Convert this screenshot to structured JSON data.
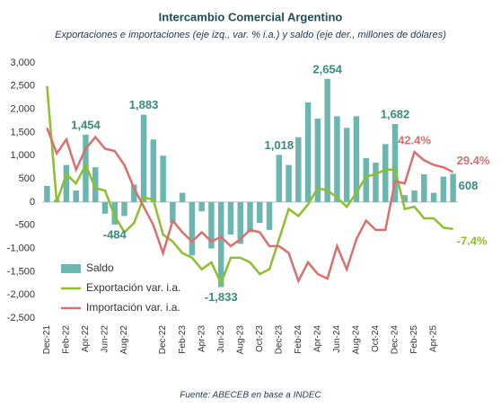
{
  "chart_data": {
    "type": "bar-line",
    "title": "Intercambio Comercial Argentino",
    "subtitle": "Exportaciones e importaciones (eje izq., var. % i.a.) y saldo (eje der., millones de dólares)",
    "source": "Fuente: ABECEB en base a INDEC",
    "categories": [
      "Dec-21",
      null,
      "Feb-22",
      null,
      "Apr-22",
      null,
      "Jun-22",
      null,
      "Aug-22",
      null,
      null,
      null,
      "Dec-22",
      null,
      "Feb-23",
      null,
      "Apr-23",
      null,
      "Jun-23",
      null,
      "Aug-23",
      null,
      "Oct-23",
      null,
      "Dec-23",
      null,
      "Feb-24",
      null,
      "Apr-24",
      null,
      "Jun-24",
      null,
      "Aug-24",
      null,
      "Oct-24",
      null,
      "Dec-24",
      null,
      "Feb-25",
      null,
      "Apr-25",
      null,
      null
    ],
    "ylim": [
      -2500,
      3000
    ],
    "yticks": [
      {
        "value": -2500,
        "label": "-2,500"
      },
      {
        "value": -2000,
        "label": "-2,000"
      },
      {
        "value": -1500,
        "label": "-1,500"
      },
      {
        "value": -1000,
        "label": "-1,000"
      },
      -500,
      0,
      500,
      {
        "value": 1000,
        "label": "1,000"
      },
      {
        "value": 1500,
        "label": "1,500"
      },
      {
        "value": 2000,
        "label": "2,000"
      },
      {
        "value": 2500,
        "label": "2,500"
      },
      {
        "value": 3000,
        "label": "3,000"
      }
    ],
    "y2lim": [
      -65,
      100
    ],
    "legend": "lower left",
    "series": [
      {
        "name": "Saldo",
        "kind": "bar",
        "color": "#6bb7b0",
        "label_color": "#3a8a80",
        "values": [
          350,
          50,
          800,
          250,
          1454,
          750,
          -250,
          -484,
          -300,
          380,
          1883,
          1350,
          1000,
          -450,
          200,
          -1150,
          -200,
          -1000,
          -1833,
          -700,
          -900,
          -650,
          -450,
          -600,
          1018,
          800,
          1400,
          2150,
          1800,
          2654,
          1850,
          1600,
          1850,
          950,
          850,
          1250,
          1682,
          150,
          250,
          600,
          200,
          550,
          608
        ],
        "value_labels": [
          null,
          null,
          null,
          null,
          "1,454",
          null,
          null,
          "-484",
          null,
          null,
          "1,883",
          null,
          null,
          null,
          null,
          null,
          null,
          null,
          "-1,833",
          null,
          null,
          null,
          null,
          null,
          "1,018",
          null,
          null,
          null,
          null,
          "2,654",
          null,
          null,
          null,
          null,
          null,
          null,
          "1,682",
          null,
          null,
          null,
          null,
          null,
          "608"
        ]
      },
      {
        "name": "Exportación var. i.a.",
        "kind": "line",
        "axis": "y2",
        "color": "#8dbf2f",
        "values": [
          85,
          10,
          28,
          22,
          34,
          19,
          17.5,
          1,
          -9.5,
          -3.5,
          13,
          11.5,
          -11,
          -15.5,
          -23,
          -26,
          -33.5,
          -29,
          -42.5,
          -26,
          -26,
          -29,
          -36.5,
          -33.5,
          -14,
          5.5,
          1,
          8.5,
          19,
          17.5,
          13,
          7,
          16,
          26.5,
          28,
          31,
          31,
          5.5,
          7,
          -0.5,
          -0.5,
          -6.5,
          -7.4
        ],
        "value_labels": [
          null,
          null,
          null,
          null,
          null,
          null,
          null,
          null,
          null,
          null,
          null,
          null,
          null,
          null,
          null,
          null,
          null,
          null,
          null,
          null,
          null,
          null,
          null,
          null,
          null,
          null,
          null,
          null,
          null,
          null,
          null,
          null,
          null,
          null,
          null,
          null,
          null,
          null,
          null,
          null,
          null,
          null,
          "-7.4%"
        ]
      },
      {
        "name": "Importación var. i.a.",
        "kind": "line",
        "axis": "y2",
        "color": "#d9706f",
        "values": [
          58,
          41.5,
          50.5,
          31,
          44.5,
          52,
          44.5,
          43,
          34,
          19,
          7,
          -5,
          -23,
          -2,
          -9.5,
          -15.5,
          -9.5,
          -15.5,
          -12.5,
          -18.5,
          -14,
          -8,
          -9.5,
          -18.5,
          -18.5,
          -23,
          -41,
          -29,
          -36.5,
          -39.5,
          -18.5,
          -33.5,
          -14,
          -2,
          -8,
          -8,
          23.5,
          22,
          42.4,
          37,
          34,
          32.5,
          29.4
        ],
        "value_labels": [
          null,
          null,
          null,
          null,
          null,
          null,
          null,
          null,
          null,
          null,
          null,
          null,
          null,
          null,
          null,
          null,
          null,
          null,
          null,
          null,
          null,
          null,
          null,
          null,
          null,
          null,
          null,
          null,
          null,
          null,
          null,
          null,
          null,
          null,
          null,
          null,
          null,
          null,
          "42.4%",
          null,
          null,
          null,
          "29.4%"
        ]
      }
    ]
  }
}
